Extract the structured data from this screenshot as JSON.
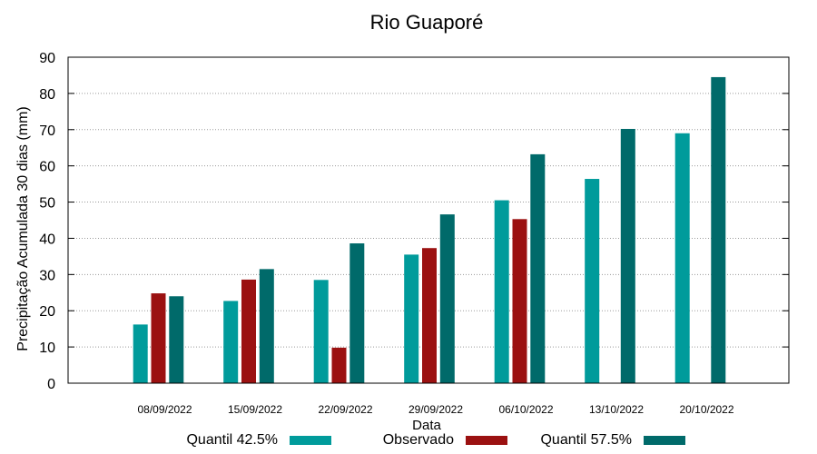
{
  "chart_data": {
    "type": "bar",
    "title": "Rio Guaporé",
    "xlabel": "Data",
    "ylabel": "Precipitação Acumulada 30 dias (mm)",
    "ylim": [
      0,
      90
    ],
    "yticks": [
      0,
      10,
      20,
      30,
      40,
      50,
      60,
      70,
      80,
      90
    ],
    "grid": true,
    "legend_position": "bottom",
    "categories": [
      "08/09/2022",
      "15/09/2022",
      "22/09/2022",
      "29/09/2022",
      "06/10/2022",
      "13/10/2022",
      "20/10/2022"
    ],
    "series": [
      {
        "name": "Quantil 42.5%",
        "color": "#009b9b",
        "values": [
          16.2,
          22.7,
          28.5,
          35.5,
          50.5,
          56.4,
          69.0
        ]
      },
      {
        "name": "Observado",
        "color": "#9b1111",
        "values": [
          24.8,
          28.6,
          9.8,
          37.3,
          45.3,
          null,
          null
        ]
      },
      {
        "name": "Quantil 57.5%",
        "color": "#006a6a",
        "values": [
          24.0,
          31.5,
          38.6,
          46.6,
          63.2,
          70.2,
          84.5
        ]
      }
    ]
  }
}
